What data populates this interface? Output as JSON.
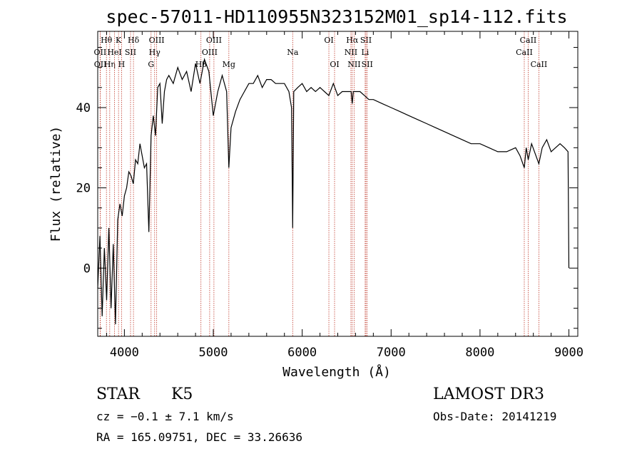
{
  "chart_data": {
    "type": "line",
    "title": "spec-57011-HD110955N323152M01_sp14-112.fits",
    "xlabel": "Wavelength (Å)",
    "ylabel": "Flux (relative)",
    "xlim": [
      3700,
      9100
    ],
    "ylim": [
      -17,
      59
    ],
    "xticks": [
      4000,
      5000,
      6000,
      7000,
      8000,
      9000
    ],
    "yticks": [
      0,
      20,
      40
    ],
    "grid": false,
    "series": [
      {
        "name": "flux",
        "x": [
          3700,
          3725,
          3750,
          3775,
          3800,
          3825,
          3850,
          3875,
          3900,
          3925,
          3950,
          3975,
          4000,
          4025,
          4050,
          4075,
          4100,
          4125,
          4150,
          4175,
          4200,
          4225,
          4250,
          4275,
          4300,
          4325,
          4350,
          4375,
          4400,
          4425,
          4450,
          4475,
          4500,
          4550,
          4600,
          4650,
          4700,
          4750,
          4800,
          4850,
          4900,
          4950,
          5000,
          5050,
          5100,
          5150,
          5175,
          5200,
          5250,
          5300,
          5350,
          5400,
          5450,
          5500,
          5550,
          5600,
          5650,
          5700,
          5750,
          5800,
          5850,
          5880,
          5893,
          5905,
          5950,
          6000,
          6050,
          6100,
          6150,
          6200,
          6250,
          6300,
          6350,
          6400,
          6450,
          6500,
          6550,
          6563,
          6575,
          6650,
          6700,
          6750,
          6800,
          6900,
          7000,
          7100,
          7200,
          7300,
          7400,
          7500,
          7600,
          7700,
          7800,
          7900,
          8000,
          8100,
          8200,
          8300,
          8400,
          8450,
          8498,
          8520,
          8542,
          8580,
          8662,
          8700,
          8750,
          8800,
          8850,
          8900,
          8950,
          8990,
          9000
        ],
        "y": [
          -5,
          8,
          -12,
          5,
          -8,
          10,
          -10,
          6,
          -14,
          12,
          16,
          13,
          18,
          20,
          24,
          23,
          21,
          27,
          26,
          31,
          28,
          25,
          26,
          9,
          33,
          38,
          33,
          45,
          46,
          36,
          44,
          47,
          48,
          46,
          50,
          47,
          49,
          44,
          51,
          46,
          52,
          49,
          38,
          44,
          48,
          44,
          25,
          35,
          39,
          42,
          44,
          46,
          46,
          48,
          45,
          47,
          47,
          46,
          46,
          46,
          44,
          40,
          10,
          44,
          45,
          46,
          44,
          45,
          44,
          45,
          44,
          43,
          46,
          43,
          44,
          44,
          44,
          41,
          44,
          44,
          43,
          42,
          42,
          41,
          40,
          39,
          38,
          37,
          36,
          35,
          34,
          33,
          32,
          31,
          31,
          30,
          29,
          29,
          30,
          28,
          25,
          30,
          27,
          31,
          26,
          30,
          32,
          29,
          30,
          31,
          30,
          29,
          0
        ]
      }
    ],
    "lines": [
      {
        "label": "Hθ",
        "x": 3798,
        "row": 0
      },
      {
        "label": "OII",
        "x": 3727,
        "row": 1
      },
      {
        "label": "OII",
        "x": 3729,
        "row": 2
      },
      {
        "label": "Hη",
        "x": 3835,
        "row": 2
      },
      {
        "label": "K",
        "x": 3934,
        "row": 0
      },
      {
        "label": "HeI",
        "x": 3889,
        "row": 1
      },
      {
        "label": "H",
        "x": 3968,
        "row": 2
      },
      {
        "label": "SII",
        "x": 4069,
        "row": 1
      },
      {
        "label": "Hδ",
        "x": 4102,
        "row": 0
      },
      {
        "label": "G",
        "x": 4300,
        "row": 2
      },
      {
        "label": "OIII",
        "x": 4363,
        "row": 0
      },
      {
        "label": "Hγ",
        "x": 4340,
        "row": 1
      },
      {
        "label": "OIII",
        "x": 5007,
        "row": 0
      },
      {
        "label": "OIII",
        "x": 4959,
        "row": 1
      },
      {
        "label": "Hβ",
        "x": 4861,
        "row": 2
      },
      {
        "label": "Mg",
        "x": 5175,
        "row": 2
      },
      {
        "label": "Na",
        "x": 5893,
        "row": 1
      },
      {
        "label": "OI",
        "x": 6300,
        "row": 0
      },
      {
        "label": "OI",
        "x": 6364,
        "row": 2
      },
      {
        "label": "Hα",
        "x": 6563,
        "row": 0
      },
      {
        "label": "NII",
        "x": 6548,
        "row": 1
      },
      {
        "label": "NII",
        "x": 6584,
        "row": 2
      },
      {
        "label": "SII",
        "x": 6717,
        "row": 0
      },
      {
        "label": "Li",
        "x": 6708,
        "row": 1
      },
      {
        "label": "SII",
        "x": 6731,
        "row": 2
      },
      {
        "label": "CaII",
        "x": 8542,
        "row": 0
      },
      {
        "label": "CaII",
        "x": 8498,
        "row": 1
      },
      {
        "label": "CaII",
        "x": 8662,
        "row": 2
      }
    ]
  },
  "info": {
    "object_class": "STAR",
    "subclass": "K5",
    "survey": "LAMOST DR3",
    "cz": "cz = −0.1 ± 7.1 km/s",
    "obs_date": "Obs-Date: 20141219",
    "coords": "RA = 165.09751, DEC =  33.26636"
  }
}
